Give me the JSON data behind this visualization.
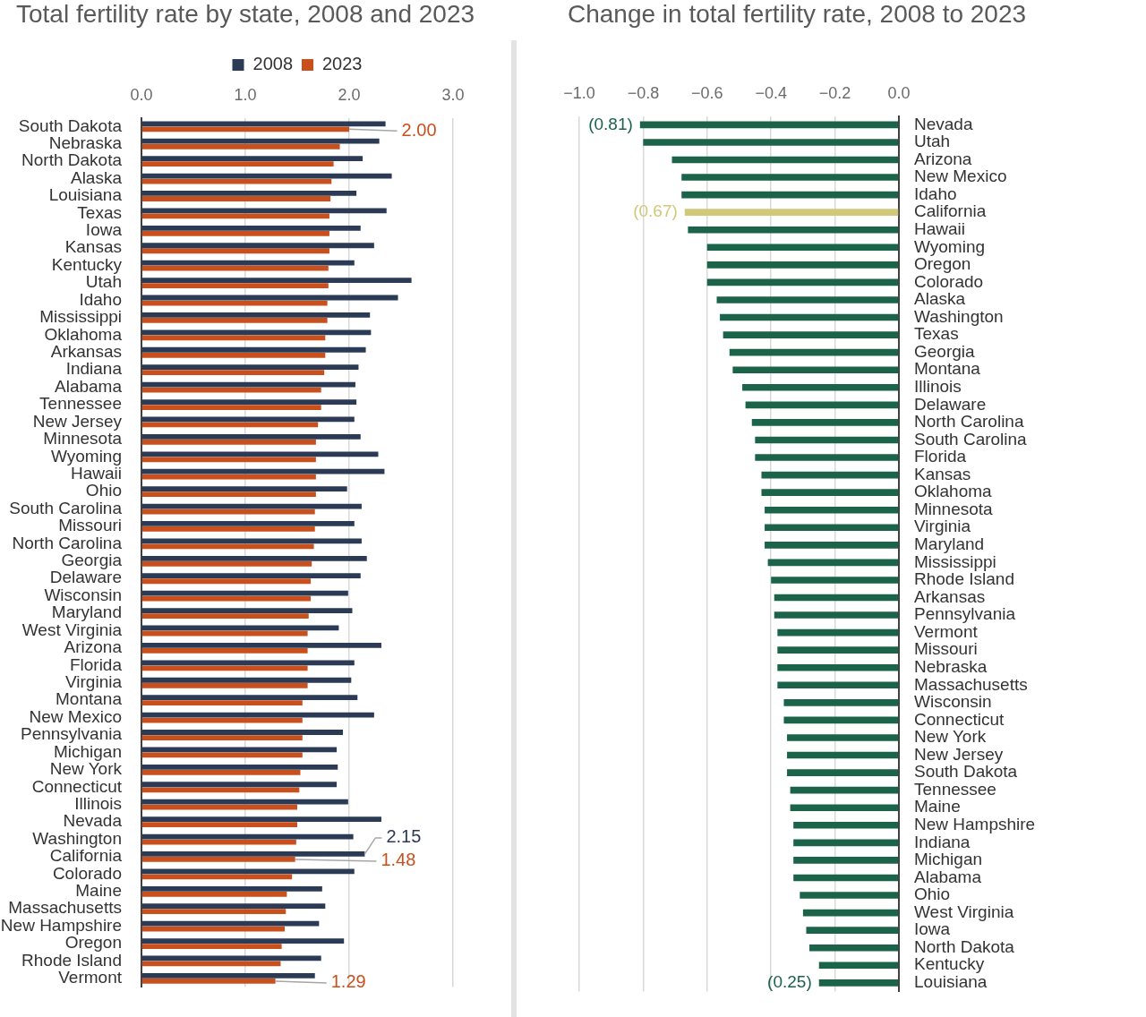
{
  "chart_data": [
    {
      "type": "bar",
      "orientation": "horizontal",
      "title": "Total fertility rate by state, 2008 and 2023",
      "categories": [
        "South Dakota",
        "Nebraska",
        "North Dakota",
        "Alaska",
        "Louisiana",
        "Texas",
        "Iowa",
        "Kansas",
        "Kentucky",
        "Utah",
        "Idaho",
        "Mississippi",
        "Oklahoma",
        "Arkansas",
        "Indiana",
        "Alabama",
        "Tennessee",
        "New Jersey",
        "Minnesota",
        "Wyoming",
        "Hawaii",
        "Ohio",
        "South Carolina",
        "Missouri",
        "North Carolina",
        "Georgia",
        "Delaware",
        "Wisconsin",
        "Maryland",
        "West Virginia",
        "Arizona",
        "Florida",
        "Virginia",
        "Montana",
        "New Mexico",
        "Pennsylvania",
        "Michigan",
        "New York",
        "Connecticut",
        "Illinois",
        "Nevada",
        "Washington",
        "California",
        "Colorado",
        "Maine",
        "Massachusetts",
        "New Hampshire",
        "Oregon",
        "Rhode Island",
        "Vermont"
      ],
      "series": [
        {
          "name": "2008",
          "color": "#2b3a55",
          "values": [
            2.35,
            2.29,
            2.13,
            2.41,
            2.07,
            2.36,
            2.11,
            2.24,
            2.05,
            2.6,
            2.47,
            2.2,
            2.21,
            2.16,
            2.09,
            2.06,
            2.07,
            2.05,
            2.11,
            2.28,
            2.34,
            1.98,
            2.12,
            2.05,
            2.12,
            2.17,
            2.11,
            1.99,
            2.03,
            1.9,
            2.31,
            2.05,
            2.02,
            2.08,
            2.24,
            1.94,
            1.88,
            1.89,
            1.88,
            1.99,
            2.31,
            2.04,
            2.15,
            2.05,
            1.74,
            1.77,
            1.71,
            1.95,
            1.73,
            1.67
          ],
          "value_labels": [
            null,
            null,
            null,
            null,
            null,
            null,
            null,
            null,
            null,
            null,
            null,
            null,
            null,
            null,
            null,
            null,
            null,
            null,
            null,
            null,
            null,
            null,
            null,
            null,
            null,
            null,
            null,
            null,
            null,
            null,
            null,
            null,
            null,
            null,
            null,
            null,
            null,
            null,
            null,
            null,
            null,
            null,
            "2.15",
            null,
            null,
            null,
            null,
            null,
            null,
            null
          ]
        },
        {
          "name": "2023",
          "color": "#c9501d",
          "values": [
            2.0,
            1.91,
            1.85,
            1.83,
            1.82,
            1.81,
            1.81,
            1.81,
            1.8,
            1.8,
            1.79,
            1.79,
            1.77,
            1.77,
            1.76,
            1.73,
            1.73,
            1.7,
            1.68,
            1.68,
            1.68,
            1.68,
            1.67,
            1.67,
            1.66,
            1.64,
            1.63,
            1.63,
            1.61,
            1.6,
            1.6,
            1.6,
            1.6,
            1.55,
            1.55,
            1.55,
            1.55,
            1.53,
            1.52,
            1.5,
            1.5,
            1.49,
            1.48,
            1.45,
            1.4,
            1.39,
            1.38,
            1.35,
            1.34,
            1.29
          ],
          "value_labels": [
            "2.00",
            null,
            null,
            null,
            null,
            null,
            null,
            null,
            null,
            null,
            null,
            null,
            null,
            null,
            null,
            null,
            null,
            null,
            null,
            null,
            null,
            null,
            null,
            null,
            null,
            null,
            null,
            null,
            null,
            null,
            null,
            null,
            null,
            null,
            null,
            null,
            null,
            null,
            null,
            null,
            null,
            null,
            "1.48",
            null,
            null,
            null,
            null,
            null,
            null,
            "1.29"
          ]
        }
      ],
      "xlim": [
        0,
        3
      ],
      "xticks": [
        {
          "value": 0,
          "label": "0.0"
        },
        {
          "value": 1,
          "label": "1.0"
        },
        {
          "value": 2,
          "label": "2.0"
        },
        {
          "value": 3,
          "label": "3.0"
        }
      ],
      "grid": "x",
      "legend": "top"
    },
    {
      "type": "bar",
      "orientation": "horizontal",
      "title": "Change in total fertility rate, 2008 to 2023",
      "categories": [
        "Nevada",
        "Utah",
        "Arizona",
        "New Mexico",
        "Idaho",
        "California",
        "Hawaii",
        "Wyoming",
        "Oregon",
        "Colorado",
        "Alaska",
        "Washington",
        "Texas",
        "Georgia",
        "Montana",
        "Illinois",
        "Delaware",
        "North Carolina",
        "South Carolina",
        "Florida",
        "Kansas",
        "Oklahoma",
        "Minnesota",
        "Virginia",
        "Maryland",
        "Mississippi",
        "Rhode Island",
        "Arkansas",
        "Pennsylvania",
        "Vermont",
        "Missouri",
        "Nebraska",
        "Massachusetts",
        "Wisconsin",
        "Connecticut",
        "New York",
        "New Jersey",
        "South Dakota",
        "Tennessee",
        "Maine",
        "New Hampshire",
        "Indiana",
        "Michigan",
        "Alabama",
        "Ohio",
        "West Virginia",
        "Iowa",
        "North Dakota",
        "Kentucky",
        "Louisiana"
      ],
      "values": [
        -0.81,
        -0.8,
        -0.71,
        -0.68,
        -0.68,
        -0.67,
        -0.66,
        -0.6,
        -0.6,
        -0.6,
        -0.57,
        -0.56,
        -0.55,
        -0.53,
        -0.52,
        -0.49,
        -0.48,
        -0.46,
        -0.45,
        -0.45,
        -0.43,
        -0.43,
        -0.42,
        -0.42,
        -0.42,
        -0.41,
        -0.4,
        -0.39,
        -0.39,
        -0.38,
        -0.38,
        -0.38,
        -0.38,
        -0.36,
        -0.36,
        -0.35,
        -0.35,
        -0.35,
        -0.34,
        -0.34,
        -0.33,
        -0.33,
        -0.33,
        -0.33,
        -0.31,
        -0.3,
        -0.29,
        -0.28,
        -0.25,
        -0.25
      ],
      "colors": [
        "#1b6349",
        "#1b6349",
        "#1b6349",
        "#1b6349",
        "#1b6349",
        "#cfc978",
        "#1b6349",
        "#1b6349",
        "#1b6349",
        "#1b6349",
        "#1b6349",
        "#1b6349",
        "#1b6349",
        "#1b6349",
        "#1b6349",
        "#1b6349",
        "#1b6349",
        "#1b6349",
        "#1b6349",
        "#1b6349",
        "#1b6349",
        "#1b6349",
        "#1b6349",
        "#1b6349",
        "#1b6349",
        "#1b6349",
        "#1b6349",
        "#1b6349",
        "#1b6349",
        "#1b6349",
        "#1b6349",
        "#1b6349",
        "#1b6349",
        "#1b6349",
        "#1b6349",
        "#1b6349",
        "#1b6349",
        "#1b6349",
        "#1b6349",
        "#1b6349",
        "#1b6349",
        "#1b6349",
        "#1b6349",
        "#1b6349",
        "#1b6349",
        "#1b6349",
        "#1b6349",
        "#1b6349",
        "#1b6349",
        "#1b6349"
      ],
      "value_labels": [
        "(0.81)",
        null,
        null,
        null,
        null,
        "(0.67)",
        null,
        null,
        null,
        null,
        null,
        null,
        null,
        null,
        null,
        null,
        null,
        null,
        null,
        null,
        null,
        null,
        null,
        null,
        null,
        null,
        null,
        null,
        null,
        null,
        null,
        null,
        null,
        null,
        null,
        null,
        null,
        null,
        null,
        null,
        null,
        null,
        null,
        null,
        null,
        null,
        null,
        null,
        null,
        "(0.25)"
      ],
      "xlim": [
        -1,
        0
      ],
      "xticks": [
        {
          "value": -1,
          "label": "−1.0"
        },
        {
          "value": -0.8,
          "label": "−0.8"
        },
        {
          "value": -0.6,
          "label": "−0.6"
        },
        {
          "value": -0.4,
          "label": "−0.4"
        },
        {
          "value": -0.2,
          "label": "−0.2"
        },
        {
          "value": 0,
          "label": "0.0"
        }
      ],
      "grid": "x"
    }
  ]
}
